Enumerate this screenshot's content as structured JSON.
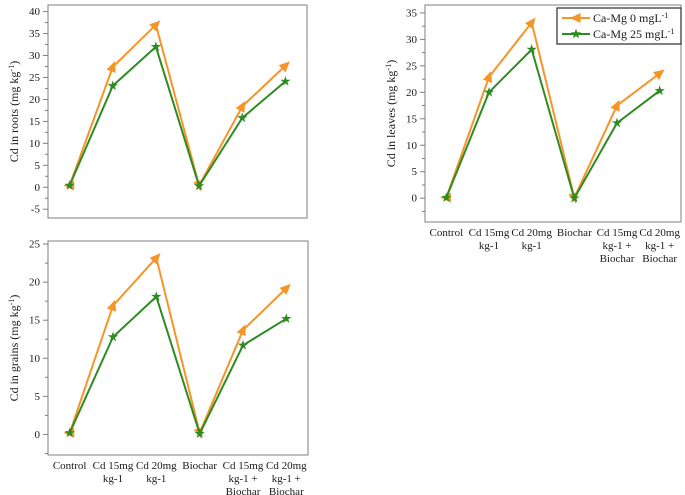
{
  "figure": {
    "background": "#ffffff"
  },
  "colors": {
    "series_orange": "#F79428",
    "series_green": "#2E8B22",
    "axis_border": "#7f7f7f",
    "text": "#1a1a1a",
    "legend_border": "#3a3a3a",
    "legend_fill": "#ffffff"
  },
  "chart_data": [
    {
      "id": "roots",
      "type": "line",
      "title": "",
      "xlabel": "",
      "ylabel": "Cd in roots (mg kg^-1^)",
      "ylim": [
        -7,
        41.5
      ],
      "yticks": [
        -5,
        0,
        5,
        10,
        15,
        20,
        25,
        30,
        35,
        40
      ],
      "minor_ticks": true,
      "grid": false,
      "show_x_labels": false,
      "show_legend": false,
      "categories": [
        [
          "Control"
        ],
        [
          "Cd 15mg",
          "kg-1"
        ],
        [
          "Cd 20mg",
          "kg-1"
        ],
        [
          "Biochar"
        ],
        [
          "Cd 15mg",
          "kg-1 +",
          "Biochar"
        ],
        [
          "Cd 20mg",
          "kg-1 +",
          "Biochar"
        ]
      ],
      "series": [
        {
          "name": "Ca-Mg 0 mgL^-1",
          "color": "#F79428",
          "marker": "arrow",
          "values": [
            0.4,
            27.4,
            37.0,
            0.4,
            18.4,
            27.7
          ]
        },
        {
          "name": "Ca-Mg 25 mgL^-1",
          "color": "#2E8B22",
          "marker": "star",
          "values": [
            0.4,
            23.1,
            32.0,
            0.3,
            15.8,
            24.1
          ]
        }
      ]
    },
    {
      "id": "leaves",
      "type": "line",
      "title": "",
      "xlabel": "",
      "ylabel": "Cd in leaves (mg kg^-1^)",
      "ylim": [
        -4.5,
        36.5
      ],
      "yticks": [
        0,
        5,
        10,
        15,
        20,
        25,
        30,
        35
      ],
      "minor_ticks": true,
      "grid": false,
      "show_x_labels": true,
      "show_legend": true,
      "legend_position": "top-right",
      "categories": [
        [
          "Control"
        ],
        [
          "Cd 15mg",
          "kg-1"
        ],
        [
          "Cd 20mg",
          "kg-1"
        ],
        [
          "Biochar"
        ],
        [
          "Cd 15mg",
          "kg-1 +",
          "Biochar"
        ],
        [
          "Cd 20mg",
          "kg-1 +",
          "Biochar"
        ]
      ],
      "series": [
        {
          "name": "Ca-Mg 0 mgL^-1",
          "color": "#F79428",
          "marker": "arrow",
          "values": [
            0.1,
            22.9,
            33.2,
            0.1,
            17.5,
            23.6
          ]
        },
        {
          "name": "Ca-Mg 25 mgL^-1",
          "color": "#2E8B22",
          "marker": "star",
          "values": [
            0.1,
            20.0,
            28.1,
            0.0,
            14.2,
            20.3
          ]
        }
      ]
    },
    {
      "id": "grains",
      "type": "line",
      "title": "",
      "xlabel": "",
      "ylabel": "Cd in grains (mg kg^-1^)",
      "ylim": [
        -2.7,
        25.4
      ],
      "yticks": [
        0,
        5,
        10,
        15,
        20,
        25
      ],
      "minor_ticks": true,
      "grid": false,
      "show_x_labels": true,
      "show_legend": false,
      "categories": [
        [
          "Control"
        ],
        [
          "Cd 15mg",
          "kg-1"
        ],
        [
          "Cd 20mg",
          "kg-1"
        ],
        [
          "Biochar"
        ],
        [
          "Cd 15mg",
          "kg-1 +",
          "Biochar"
        ],
        [
          "Cd 20mg",
          "kg-1 +",
          "Biochar"
        ]
      ],
      "series": [
        {
          "name": "Ca-Mg 0 mgL^-1",
          "color": "#F79428",
          "marker": "arrow",
          "values": [
            0.2,
            16.9,
            23.2,
            0.2,
            13.7,
            19.2
          ]
        },
        {
          "name": "Ca-Mg 25 mgL^-1",
          "color": "#2E8B22",
          "marker": "star",
          "values": [
            0.2,
            12.8,
            18.1,
            0.1,
            11.7,
            15.2
          ]
        }
      ]
    }
  ]
}
